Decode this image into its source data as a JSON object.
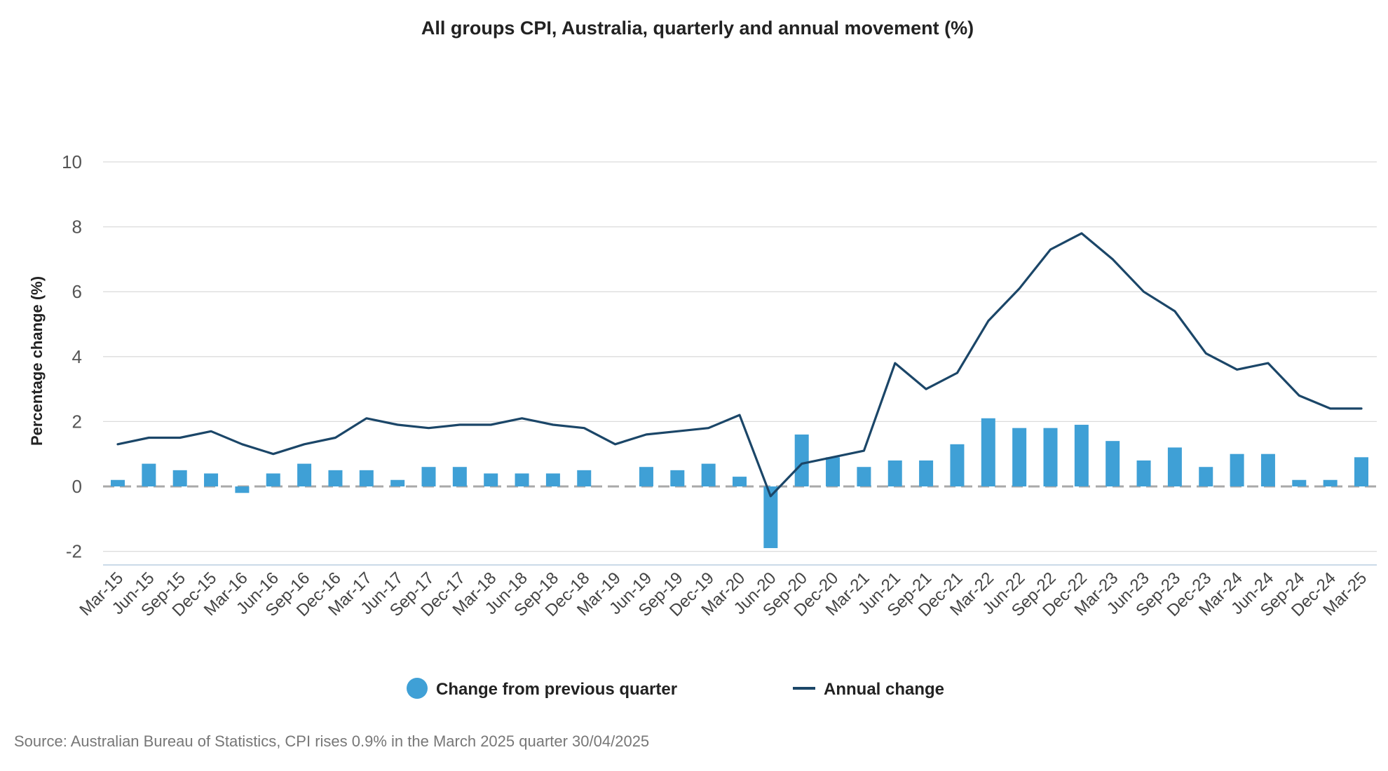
{
  "chart_data": {
    "type": "bar",
    "title": "All groups CPI, Australia, quarterly and annual movement (%)",
    "ylabel": "Percentage change (%)",
    "xlabel": "",
    "ylim": [
      -2.4,
      10
    ],
    "yticks": [
      10,
      8,
      6,
      4,
      2,
      0,
      -2
    ],
    "grid": true,
    "legend_position": "bottom",
    "categories": [
      "Mar-15",
      "Jun-15",
      "Sep-15",
      "Dec-15",
      "Mar-16",
      "Jun-16",
      "Sep-16",
      "Dec-16",
      "Mar-17",
      "Jun-17",
      "Sep-17",
      "Dec-17",
      "Mar-18",
      "Jun-18",
      "Sep-18",
      "Dec-18",
      "Mar-19",
      "Jun-19",
      "Sep-19",
      "Dec-19",
      "Mar-20",
      "Jun-20",
      "Sep-20",
      "Dec-20",
      "Mar-21",
      "Jun-21",
      "Sep-21",
      "Dec-21",
      "Mar-22",
      "Jun-22",
      "Sep-22",
      "Dec-22",
      "Mar-23",
      "Jun-23",
      "Sep-23",
      "Dec-23",
      "Mar-24",
      "Jun-24",
      "Sep-24",
      "Dec-24",
      "Mar-25"
    ],
    "series": [
      {
        "name": "Change from previous quarter",
        "type": "bar",
        "color": "#3fa0d6",
        "values": [
          0.2,
          0.7,
          0.5,
          0.4,
          -0.2,
          0.4,
          0.7,
          0.5,
          0.5,
          0.2,
          0.6,
          0.6,
          0.4,
          0.4,
          0.4,
          0.5,
          0.0,
          0.6,
          0.5,
          0.7,
          0.3,
          -1.9,
          1.6,
          0.9,
          0.6,
          0.8,
          0.8,
          1.3,
          2.1,
          1.8,
          1.8,
          1.9,
          1.4,
          0.8,
          1.2,
          0.6,
          1.0,
          1.0,
          0.2,
          0.2,
          0.9
        ]
      },
      {
        "name": "Annual change",
        "type": "line",
        "color": "#1b4668",
        "values": [
          1.3,
          1.5,
          1.5,
          1.7,
          1.3,
          1.0,
          1.3,
          1.5,
          2.1,
          1.9,
          1.8,
          1.9,
          1.9,
          2.1,
          1.9,
          1.8,
          1.3,
          1.6,
          1.7,
          1.8,
          2.2,
          -0.3,
          0.7,
          0.9,
          1.1,
          3.8,
          3.0,
          3.5,
          5.1,
          6.1,
          7.3,
          7.8,
          7.0,
          6.0,
          5.4,
          4.1,
          3.6,
          3.8,
          2.8,
          2.4,
          2.4
        ]
      }
    ]
  },
  "source": "Source: Australian Bureau of Statistics, CPI rises 0.9% in the March 2025 quarter 30/04/2025"
}
